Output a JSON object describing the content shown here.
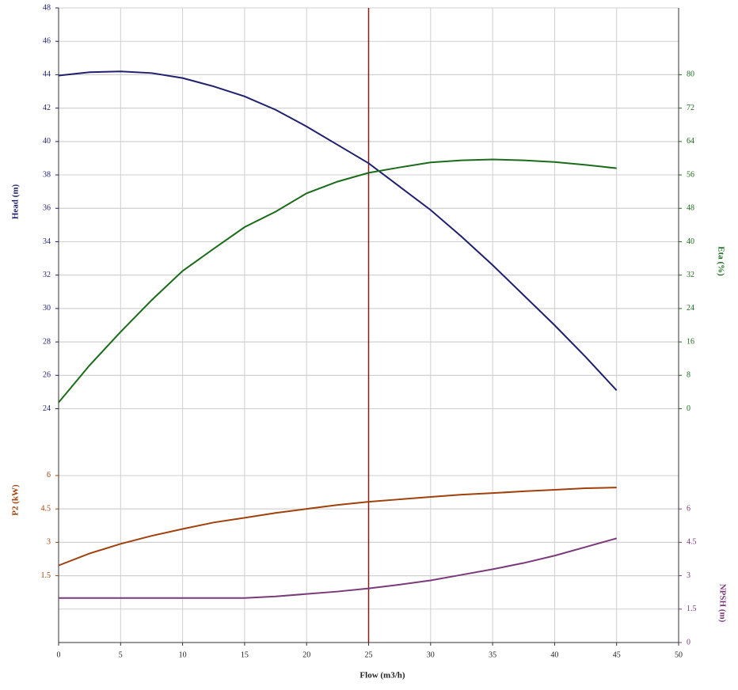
{
  "chart_data": {
    "type": "line",
    "xlabel": "Flow (m3/h)",
    "ylabel": "Head (m)",
    "y2label": "Eta (%)",
    "y3label": "P2 (kW)",
    "y4label": "NPSH (m)",
    "x": [
      0,
      2.5,
      5,
      7.5,
      10,
      12.5,
      15,
      17.5,
      20,
      22.5,
      25,
      27.5,
      30,
      32.5,
      35,
      37.5,
      40,
      42.5,
      45
    ],
    "xlim": [
      0,
      50
    ],
    "xticks": [
      0,
      5,
      10,
      15,
      20,
      25,
      30,
      35,
      40,
      45,
      50
    ],
    "ylim": [
      10,
      48
    ],
    "yticks": [
      24,
      26,
      28,
      30,
      32,
      34,
      36,
      38,
      40,
      42,
      44,
      46,
      48
    ],
    "y2lim": [
      -56,
      96
    ],
    "y2ticks": [
      0,
      8,
      16,
      24,
      32,
      40,
      48,
      56,
      64,
      72,
      80
    ],
    "y3lim": [
      -1.5,
      27
    ],
    "y3ticks": [
      1.5,
      3,
      4.5,
      6
    ],
    "y4lim": [
      0,
      28.5
    ],
    "y4ticks": [
      0,
      1.5,
      3,
      4.5,
      6
    ],
    "grid": true,
    "vline": 25,
    "vline_color": "#8b1a1a",
    "series": [
      {
        "axis": "y",
        "color": "#1f1f6e",
        "values": [
          43.95,
          44.15,
          44.2,
          44.1,
          43.8,
          43.3,
          42.7,
          41.9,
          40.9,
          39.8,
          38.7,
          37.3,
          35.9,
          34.3,
          32.6,
          30.8,
          29.0,
          27.1,
          25.1
        ]
      },
      {
        "axis": "y2",
        "color": "#1a6b1a",
        "values": [
          1.5,
          10.4,
          18.4,
          26,
          33,
          38.3,
          43.5,
          47.2,
          51.6,
          54.4,
          56.5,
          57.8,
          59,
          59.5,
          59.7,
          59.5,
          59.1,
          58.4,
          57.6
        ]
      },
      {
        "axis": "y3",
        "color": "#a0400a",
        "values": [
          1.96,
          2.5,
          2.93,
          3.29,
          3.6,
          3.89,
          4.1,
          4.32,
          4.5,
          4.68,
          4.82,
          4.93,
          5.04,
          5.14,
          5.21,
          5.29,
          5.36,
          5.43,
          5.46
        ]
      },
      {
        "axis": "y4",
        "color": "#7a3a7a",
        "values": [
          2.0,
          2.0,
          2.0,
          2.0,
          2.0,
          2.0,
          2.0,
          2.07,
          2.18,
          2.29,
          2.43,
          2.6,
          2.79,
          3.04,
          3.29,
          3.57,
          3.9,
          4.29,
          4.68
        ]
      }
    ]
  }
}
